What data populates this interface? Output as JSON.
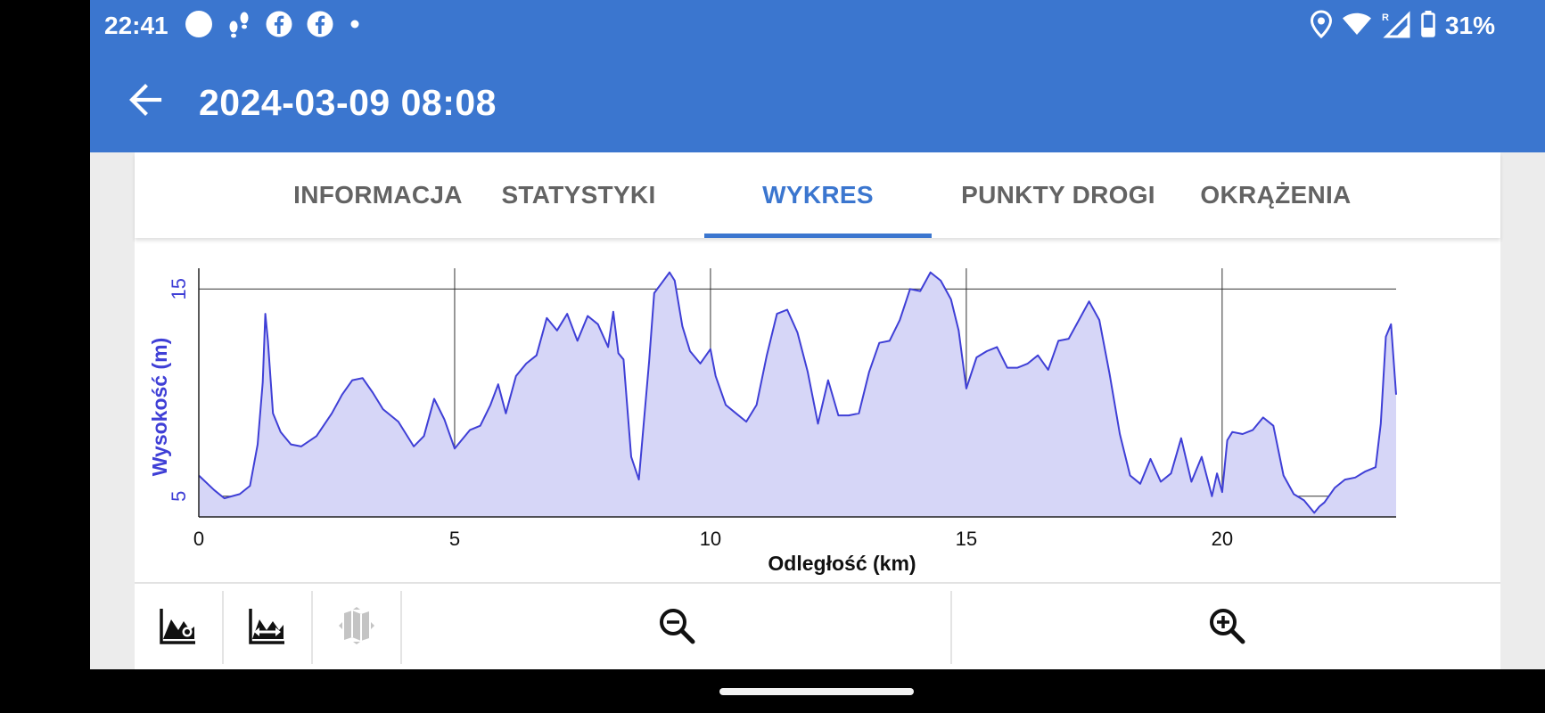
{
  "status_bar": {
    "time": "22:41",
    "left_icons": [
      "circle-notification-icon",
      "footsteps-icon",
      "facebook-icon",
      "facebook-icon",
      "dot-icon"
    ],
    "right_icons": [
      "location-icon",
      "wifi-icon",
      "signal-roaming-icon",
      "battery-icon"
    ],
    "battery": "31%"
  },
  "app_bar": {
    "back_icon": "arrow-back-icon",
    "title": "2024-03-09 08:08"
  },
  "tabs": [
    {
      "label": "INFORMACJA",
      "active": false
    },
    {
      "label": "STATYSTYKI",
      "active": false
    },
    {
      "label": "WYKRES",
      "active": true
    },
    {
      "label": "PUNKTY DROGI",
      "active": false
    },
    {
      "label": "OKRĄŻENIA",
      "active": false
    }
  ],
  "colors": {
    "accent": "#3b76cf",
    "series_line": "#3f3fd6",
    "series_fill": "#d6d6f7"
  },
  "chart_data": {
    "type": "area",
    "xlabel": "Odległość (km)",
    "ylabel": "Wysokość (m)",
    "xlim": [
      0,
      23.4
    ],
    "ylim": [
      4,
      16
    ],
    "x_ticks": [
      0,
      5,
      10,
      15,
      20
    ],
    "y_ticks": [
      5,
      15
    ],
    "grid": true,
    "legend": "none",
    "x": [
      0,
      0.3,
      0.5,
      0.8,
      1.0,
      1.15,
      1.25,
      1.3,
      1.35,
      1.45,
      1.6,
      1.8,
      2.0,
      2.3,
      2.6,
      2.8,
      3.0,
      3.2,
      3.4,
      3.6,
      3.9,
      4.2,
      4.4,
      4.6,
      4.8,
      5.0,
      5.3,
      5.5,
      5.7,
      5.85,
      6.0,
      6.2,
      6.4,
      6.6,
      6.8,
      7.0,
      7.2,
      7.4,
      7.6,
      7.8,
      8.0,
      8.1,
      8.2,
      8.3,
      8.45,
      8.6,
      8.8,
      8.9,
      9.05,
      9.2,
      9.3,
      9.45,
      9.6,
      9.8,
      10.0,
      10.1,
      10.3,
      10.5,
      10.7,
      10.9,
      11.1,
      11.3,
      11.5,
      11.7,
      11.9,
      12.1,
      12.3,
      12.5,
      12.7,
      12.9,
      13.1,
      13.3,
      13.5,
      13.7,
      13.9,
      14.1,
      14.3,
      14.5,
      14.7,
      14.85,
      15.0,
      15.2,
      15.4,
      15.6,
      15.8,
      16.0,
      16.2,
      16.4,
      16.6,
      16.8,
      17.0,
      17.2,
      17.4,
      17.6,
      17.8,
      18.0,
      18.2,
      18.4,
      18.6,
      18.8,
      19.0,
      19.2,
      19.4,
      19.6,
      19.8,
      19.9,
      20.0,
      20.1,
      20.2,
      20.4,
      20.6,
      20.8,
      21.0,
      21.2,
      21.4,
      21.6,
      21.8,
      21.9,
      22.0,
      22.2,
      22.4,
      22.6,
      22.8,
      23.0,
      23.1,
      23.2,
      23.3,
      23.4
    ],
    "values": [
      6.0,
      5.3,
      4.9,
      5.1,
      5.5,
      7.5,
      10.5,
      13.8,
      12.5,
      9.0,
      8.1,
      7.5,
      7.4,
      7.9,
      9.0,
      9.9,
      10.6,
      10.7,
      10.0,
      9.2,
      8.6,
      7.4,
      7.9,
      9.7,
      8.7,
      7.3,
      8.2,
      8.4,
      9.4,
      10.4,
      9.0,
      10.8,
      11.4,
      11.8,
      13.6,
      13.0,
      13.8,
      12.5,
      13.7,
      13.3,
      12.2,
      13.9,
      11.9,
      11.6,
      6.9,
      5.8,
      11.5,
      14.8,
      15.3,
      15.8,
      15.4,
      13.2,
      12.0,
      11.4,
      12.1,
      10.8,
      9.4,
      9.0,
      8.6,
      9.4,
      11.8,
      13.8,
      14.0,
      12.9,
      11.0,
      8.5,
      10.6,
      8.9,
      8.9,
      9.0,
      11.0,
      12.4,
      12.5,
      13.5,
      15.0,
      14.9,
      15.8,
      15.4,
      14.5,
      13.0,
      10.2,
      11.7,
      12.0,
      12.2,
      11.2,
      11.2,
      11.4,
      11.8,
      11.1,
      12.5,
      12.6,
      13.5,
      14.4,
      13.5,
      10.9,
      8.0,
      6.0,
      5.6,
      6.8,
      5.7,
      6.1,
      7.8,
      5.7,
      6.9,
      5.0,
      6.1,
      5.2,
      7.7,
      8.1,
      8.0,
      8.2,
      8.8,
      8.4,
      6.0,
      5.1,
      4.8,
      4.2,
      4.5,
      4.7,
      5.4,
      5.8,
      5.9,
      6.2,
      6.4,
      8.5,
      12.7,
      13.3,
      9.9
    ]
  },
  "toolbar": {
    "buttons": [
      {
        "icon": "chart-settings-icon"
      },
      {
        "icon": "chart-pan-icon"
      },
      {
        "icon": "map-icon"
      },
      {
        "icon": "zoom-out-icon"
      },
      {
        "icon": "zoom-in-icon"
      }
    ]
  }
}
